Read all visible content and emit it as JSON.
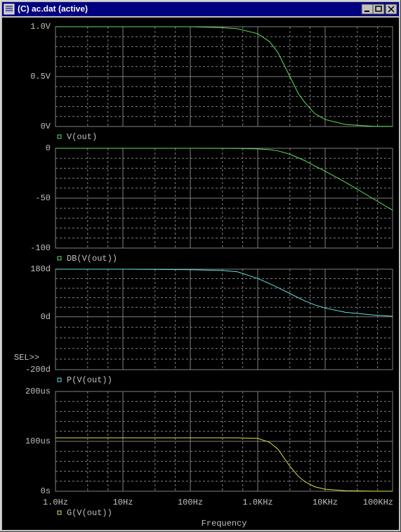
{
  "window": {
    "title": "(C) ac.dat (active)"
  },
  "chart_data": [
    {
      "type": "line",
      "x": [
        1,
        10,
        100,
        300,
        500,
        1000,
        1500,
        2000,
        3000,
        4000,
        5000,
        7000,
        10000,
        20000,
        50000,
        100000
      ],
      "series": [
        {
          "name": "V(out)",
          "color": "#5fe05f",
          "values": [
            1,
            1,
            1,
            0.99,
            0.98,
            0.93,
            0.85,
            0.74,
            0.5,
            0.33,
            0.24,
            0.13,
            0.07,
            0.02,
            0.003,
            0.001
          ]
        }
      ],
      "ylim": [
        0,
        1
      ],
      "yticks": [
        {
          "value": 0,
          "label": "0V"
        },
        {
          "value": 0.5,
          "label": "0.5V"
        },
        {
          "value": 1,
          "label": "1.0V"
        }
      ],
      "grid": true
    },
    {
      "type": "line",
      "x": [
        1,
        10,
        100,
        300,
        500,
        1000,
        1500,
        2000,
        3000,
        4000,
        5000,
        7000,
        10000,
        20000,
        50000,
        100000
      ],
      "series": [
        {
          "name": "DB(V(out))",
          "color": "#5fe05f",
          "values": [
            0,
            0,
            0,
            -0.1,
            -0.2,
            -0.6,
            -1.4,
            -2.6,
            -6,
            -9.6,
            -12.4,
            -17.7,
            -23,
            -34,
            -50,
            -62
          ]
        }
      ],
      "ylim": [
        -100,
        0
      ],
      "yticks": [
        -100,
        -50,
        0
      ],
      "grid": true
    },
    {
      "type": "line",
      "x": [
        1,
        10,
        100,
        300,
        500,
        1000,
        1500,
        2000,
        3000,
        4000,
        5000,
        7000,
        10000,
        20000,
        50000,
        100000
      ],
      "series": [
        {
          "name": "P(V(out))",
          "color": "#5fe0e0",
          "values": [
            180,
            180,
            178,
            175,
            170,
            145,
            125,
            110,
            88,
            72,
            60,
            45,
            33,
            17,
            7,
            2
          ]
        }
      ],
      "ylim": [
        -200,
        180
      ],
      "yticks": [
        {
          "value": -200,
          "label": "-200d"
        },
        {
          "value": 0,
          "label": "0d"
        },
        {
          "value": 180,
          "label": "180d"
        }
      ],
      "annotation": "SEL>>",
      "grid": true
    },
    {
      "type": "line",
      "x": [
        1,
        10,
        100,
        300,
        500,
        1000,
        1500,
        2000,
        3000,
        4000,
        5000,
        7000,
        10000,
        20000,
        50000,
        100000
      ],
      "series": [
        {
          "name": "G(V(out))",
          "color": "#e0e040",
          "values": [
            107,
            107,
            107,
            107,
            107,
            106,
            98,
            84,
            50,
            30,
            19,
            9,
            4,
            1,
            0.2,
            0.05
          ]
        }
      ],
      "ylim": [
        0,
        200
      ],
      "yticks": [
        {
          "value": 0,
          "label": "0s"
        },
        {
          "value": 100,
          "label": "100us"
        },
        {
          "value": 200,
          "label": "200us"
        }
      ],
      "xlim": [
        1,
        100000
      ],
      "xscale": "log",
      "xticks": [
        {
          "value": 1,
          "label": "1.0Hz"
        },
        {
          "value": 10,
          "label": "10Hz"
        },
        {
          "value": 100,
          "label": "100Hz"
        },
        {
          "value": 1000,
          "label": "1.0KHz"
        },
        {
          "value": 10000,
          "label": "10KHz"
        },
        {
          "value": 100000,
          "label": "100KHz"
        }
      ],
      "xlabel": "Frequency",
      "grid": true
    }
  ]
}
